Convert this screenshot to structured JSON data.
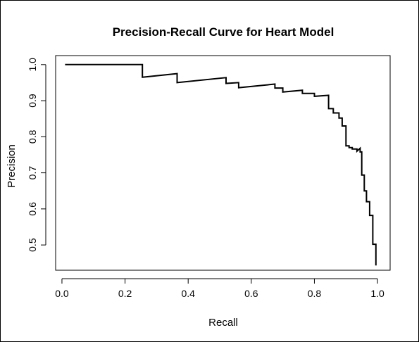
{
  "chart_data": {
    "type": "line",
    "title": "Precision-Recall Curve for Heart Model",
    "xlabel": "Recall",
    "ylabel": "Precision",
    "xlim": [
      -0.02,
      1.04
    ],
    "ylim": [
      0.43,
      1.025
    ],
    "xticks": [
      {
        "value": 0.0,
        "label": "0.0"
      },
      {
        "value": 0.2,
        "label": "0.2"
      },
      {
        "value": 0.4,
        "label": "0.4"
      },
      {
        "value": 0.6,
        "label": "0.6"
      },
      {
        "value": 0.8,
        "label": "0.8"
      },
      {
        "value": 1.0,
        "label": "1.0"
      }
    ],
    "yticks": [
      {
        "value": 0.5,
        "label": "0.5"
      },
      {
        "value": 0.6,
        "label": "0.6"
      },
      {
        "value": 0.7,
        "label": "0.7"
      },
      {
        "value": 0.8,
        "label": "0.8"
      },
      {
        "value": 0.9,
        "label": "0.9"
      },
      {
        "value": 1.0,
        "label": "1.0"
      }
    ],
    "grid": false,
    "series": [
      {
        "line_color": "#000000",
        "points": [
          [
            0.01,
            1.0
          ],
          [
            0.255,
            1.0
          ],
          [
            0.255,
            0.965
          ],
          [
            0.365,
            0.975
          ],
          [
            0.365,
            0.95
          ],
          [
            0.52,
            0.964
          ],
          [
            0.52,
            0.948
          ],
          [
            0.56,
            0.95
          ],
          [
            0.56,
            0.936
          ],
          [
            0.675,
            0.946
          ],
          [
            0.675,
            0.935
          ],
          [
            0.7,
            0.935
          ],
          [
            0.7,
            0.924
          ],
          [
            0.762,
            0.929
          ],
          [
            0.762,
            0.92
          ],
          [
            0.8,
            0.92
          ],
          [
            0.8,
            0.912
          ],
          [
            0.845,
            0.915
          ],
          [
            0.845,
            0.878
          ],
          [
            0.86,
            0.878
          ],
          [
            0.86,
            0.866
          ],
          [
            0.878,
            0.866
          ],
          [
            0.878,
            0.852
          ],
          [
            0.888,
            0.852
          ],
          [
            0.888,
            0.83
          ],
          [
            0.9,
            0.83
          ],
          [
            0.9,
            0.775
          ],
          [
            0.91,
            0.775
          ],
          [
            0.91,
            0.77
          ],
          [
            0.92,
            0.77
          ],
          [
            0.92,
            0.766
          ],
          [
            0.935,
            0.766
          ],
          [
            0.935,
            0.76
          ],
          [
            0.945,
            0.768
          ],
          [
            0.945,
            0.758
          ],
          [
            0.95,
            0.758
          ],
          [
            0.95,
            0.694
          ],
          [
            0.958,
            0.694
          ],
          [
            0.958,
            0.65
          ],
          [
            0.965,
            0.65
          ],
          [
            0.965,
            0.62
          ],
          [
            0.975,
            0.62
          ],
          [
            0.975,
            0.582
          ],
          [
            0.985,
            0.582
          ],
          [
            0.985,
            0.502
          ],
          [
            0.995,
            0.502
          ],
          [
            0.995,
            0.443
          ]
        ]
      }
    ]
  }
}
